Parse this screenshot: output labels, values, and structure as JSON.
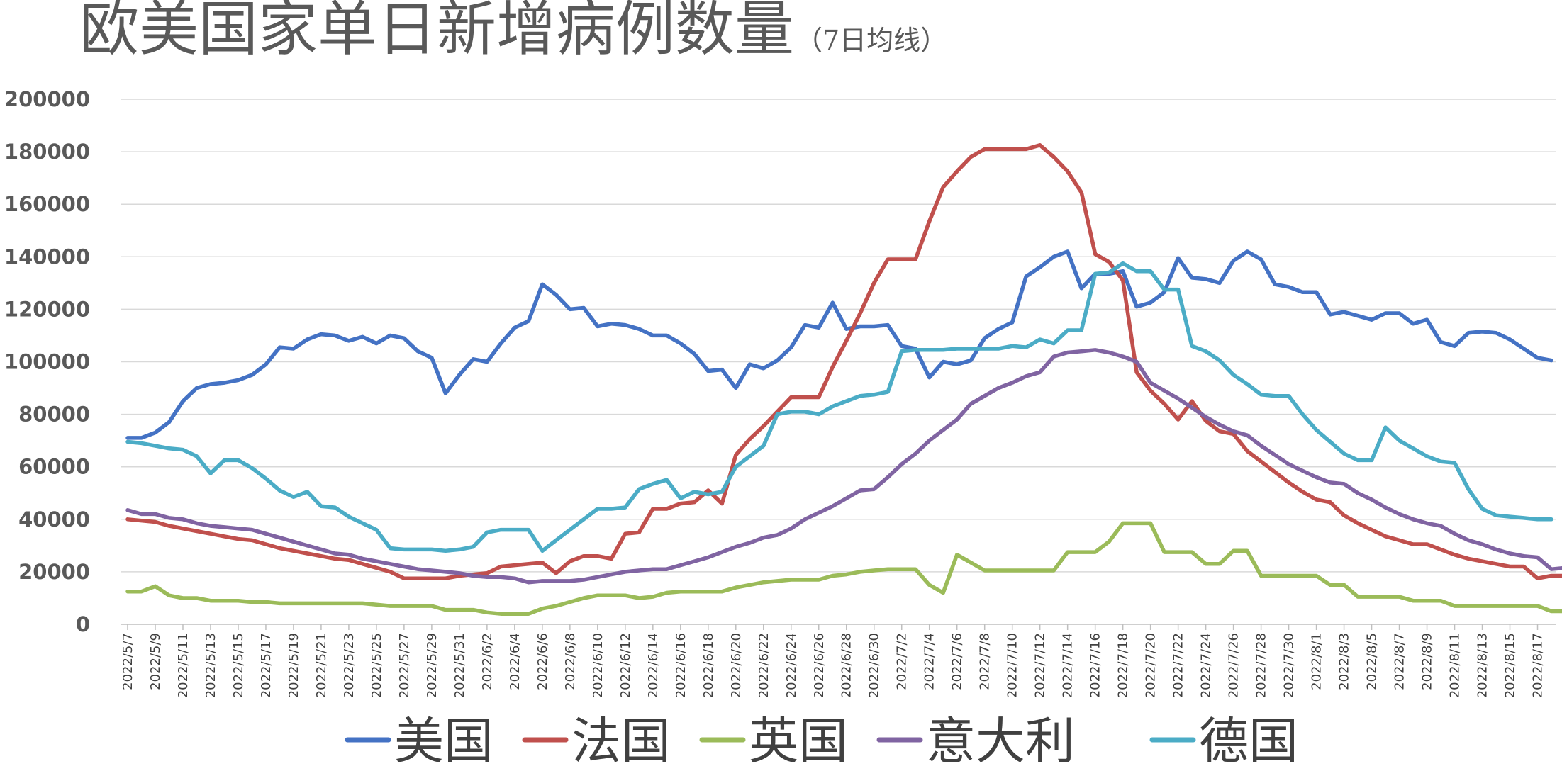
{
  "chart_data": {
    "type": "line",
    "title": "欧美国家单日新增病例数量",
    "subtitle": "（7日均线）",
    "xlabel": "",
    "ylabel": "",
    "ylim": [
      0,
      200000
    ],
    "yticks": [
      "0",
      "20000",
      "40000",
      "60000",
      "80000",
      "100000",
      "120000",
      "140000",
      "160000",
      "180000",
      "200000"
    ],
    "xticklabels": [
      "2022/5/7",
      "2022/5/9",
      "2022/5/11",
      "2022/5/13",
      "2022/5/15",
      "2022/5/17",
      "2022/5/19",
      "2022/5/21",
      "2022/5/23",
      "2022/5/25",
      "2022/5/27",
      "2022/5/29",
      "2022/5/31",
      "2022/6/2",
      "2022/6/4",
      "2022/6/6",
      "2022/6/8",
      "2022/6/10",
      "2022/6/12",
      "2022/6/14",
      "2022/6/16",
      "2022/6/18",
      "2022/6/20",
      "2022/6/22",
      "2022/6/24",
      "2022/6/26",
      "2022/6/28",
      "2022/6/30",
      "2022/7/2",
      "2022/7/4",
      "2022/7/6",
      "2022/7/8",
      "2022/7/10",
      "2022/7/12",
      "2022/7/14",
      "2022/7/16",
      "2022/7/18",
      "2022/7/20",
      "2022/7/22",
      "2022/7/24",
      "2022/7/26",
      "2022/7/28",
      "2022/7/30",
      "2022/8/1",
      "2022/8/3",
      "2022/8/5",
      "2022/8/7",
      "2022/8/9",
      "2022/8/11",
      "2022/8/13",
      "2022/8/15",
      "2022/8/17"
    ],
    "grid": true,
    "legend_position": "bottom",
    "series": [
      {
        "name": "美国",
        "color": "#4472c4",
        "values": [
          71000,
          71000,
          73000,
          77000,
          85000,
          90000,
          91500,
          92000,
          93000,
          95000,
          99000,
          105500,
          105000,
          108500,
          110500,
          110000,
          108000,
          109500,
          107000,
          110000,
          109000,
          104000,
          101500,
          88000,
          95000,
          101000,
          100000,
          107000,
          113000,
          115500,
          129500,
          125500,
          120000,
          120500,
          113500,
          114500,
          114000,
          112500,
          110000,
          110000,
          107000,
          103000,
          96500,
          97000,
          90000,
          99000,
          97500,
          100500,
          105500,
          114000,
          113000,
          122500,
          112500,
          113500,
          113500,
          114000,
          106000,
          105000,
          94000,
          100000,
          99000,
          100500,
          109000,
          112500,
          115000,
          132500,
          136000,
          140000,
          142000,
          128000,
          133500,
          133500,
          134500,
          121000,
          122500,
          126500,
          139500,
          132000,
          131500,
          130000,
          138500,
          142000,
          139000,
          129500,
          128500,
          126500,
          126500,
          118000,
          119000,
          117500,
          116000,
          118500,
          118500,
          114500,
          116000,
          107500,
          106000,
          111000,
          111500,
          111000,
          108500,
          105000,
          101500,
          100500
        ]
      },
      {
        "name": "法国",
        "color": "#c0504d",
        "values": [
          40000,
          39500,
          39000,
          37500,
          36500,
          35500,
          34500,
          33500,
          32500,
          32000,
          30500,
          29000,
          28000,
          27000,
          26000,
          25000,
          24500,
          23000,
          21500,
          20000,
          17500,
          17500,
          17500,
          17500,
          18500,
          19000,
          19500,
          22000,
          22500,
          23000,
          23500,
          19500,
          24000,
          26000,
          26000,
          25000,
          34500,
          35000,
          44000,
          44000,
          46000,
          46500,
          51000,
          46000,
          64500,
          70500,
          75500,
          81000,
          86500,
          86500,
          86500,
          98000,
          108000,
          118500,
          130000,
          139000,
          139000,
          139000,
          153500,
          166500,
          172500,
          178000,
          181000,
          181000,
          181000,
          181000,
          182500,
          178000,
          172500,
          164500,
          141000,
          138000,
          131000,
          96000,
          89000,
          84000,
          78000,
          85000,
          77500,
          73500,
          72500,
          66000,
          62000,
          58000,
          54000,
          50500,
          47500,
          46500,
          41500,
          38500,
          36000,
          33500,
          32000,
          30500,
          30500,
          28500,
          26500,
          25000,
          24000,
          23000,
          22000,
          22000,
          17500,
          18500,
          18500
        ]
      },
      {
        "name": "英国",
        "color": "#9bbb59",
        "values": [
          12500,
          12500,
          14500,
          11000,
          10000,
          10000,
          9000,
          9000,
          9000,
          8500,
          8500,
          8000,
          8000,
          8000,
          8000,
          8000,
          8000,
          8000,
          7500,
          7000,
          7000,
          7000,
          7000,
          5500,
          5500,
          5500,
          4500,
          4000,
          4000,
          4000,
          6000,
          7000,
          8500,
          10000,
          11000,
          11000,
          11000,
          10000,
          10500,
          12000,
          12500,
          12500,
          12500,
          12500,
          14000,
          15000,
          16000,
          16500,
          17000,
          17000,
          17000,
          18500,
          19000,
          20000,
          20500,
          21000,
          21000,
          21000,
          15000,
          12000,
          26500,
          23500,
          20500,
          20500,
          20500,
          20500,
          20500,
          20500,
          27500,
          27500,
          27500,
          31500,
          38500,
          38500,
          38500,
          27500,
          27500,
          27500,
          23000,
          23000,
          28000,
          28000,
          18500,
          18500,
          18500,
          18500,
          18500,
          15000,
          15000,
          10500,
          10500,
          10500,
          10500,
          9000,
          9000,
          9000,
          7000,
          7000,
          7000,
          7000,
          7000,
          7000,
          7000,
          5000,
          5000
        ]
      },
      {
        "name": "意大利",
        "color": "#8064a2",
        "values": [
          43500,
          42000,
          42000,
          40500,
          40000,
          38500,
          37500,
          37000,
          36500,
          36000,
          34500,
          33000,
          31500,
          30000,
          28500,
          27000,
          26500,
          25000,
          24000,
          23000,
          22000,
          21000,
          20500,
          20000,
          19500,
          18500,
          18000,
          18000,
          17500,
          16000,
          16500,
          16500,
          16500,
          17000,
          18000,
          19000,
          20000,
          20500,
          21000,
          21000,
          22500,
          24000,
          25500,
          27500,
          29500,
          31000,
          33000,
          34000,
          36500,
          40000,
          42500,
          45000,
          48000,
          51000,
          51500,
          56000,
          61000,
          65000,
          70000,
          74000,
          78000,
          84000,
          87000,
          90000,
          92000,
          94500,
          96000,
          102000,
          103500,
          104000,
          104500,
          103500,
          102000,
          100000,
          92000,
          89000,
          86000,
          82500,
          79000,
          76000,
          73500,
          72000,
          68000,
          64500,
          61000,
          58500,
          56000,
          54000,
          53500,
          50000,
          47500,
          44500,
          42000,
          40000,
          38500,
          37500,
          34500,
          32000,
          30500,
          28500,
          27000,
          26000,
          25500,
          21000,
          21500,
          21500
        ]
      },
      {
        "name": "德国",
        "color": "#4bacc6",
        "values": [
          69500,
          69000,
          68000,
          67000,
          66500,
          64000,
          57500,
          62500,
          62500,
          59500,
          55500,
          51000,
          48500,
          50500,
          45000,
          44500,
          41000,
          38500,
          36000,
          29000,
          28500,
          28500,
          28500,
          28000,
          28500,
          29500,
          35000,
          36000,
          36000,
          36000,
          28000,
          32000,
          36000,
          40000,
          44000,
          44000,
          44500,
          51500,
          53500,
          55000,
          48000,
          50500,
          49500,
          50500,
          60000,
          64000,
          68000,
          80000,
          81000,
          81000,
          80000,
          83000,
          85000,
          87000,
          87500,
          88500,
          104000,
          104500,
          104500,
          104500,
          105000,
          105000,
          105000,
          105000,
          106000,
          105500,
          108500,
          107000,
          112000,
          112000,
          133500,
          134000,
          137500,
          134500,
          134500,
          127500,
          127500,
          106000,
          104000,
          100500,
          95000,
          91500,
          87500,
          87000,
          87000,
          80000,
          74000,
          69500,
          65000,
          62500,
          62500,
          75000,
          70000,
          67000,
          64000,
          62000,
          61500,
          51500,
          44000,
          41500,
          41000,
          40500,
          40000,
          40000
        ]
      }
    ]
  }
}
